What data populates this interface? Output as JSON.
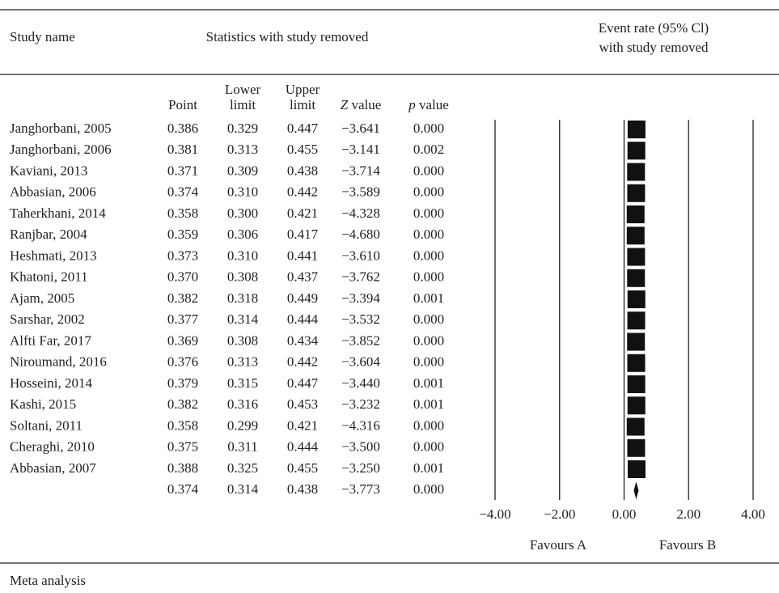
{
  "chart_data": {
    "type": "forest",
    "header_left": "Study name",
    "header_mid": "Statistics with study removed",
    "title_lines": [
      "Event rate (95% Cl)",
      "with study removed"
    ],
    "footer": "Meta analysis",
    "categories": [
      "Janghorbani, 2005",
      "Janghorbani, 2006",
      "Kaviani, 2013",
      "Abbasian, 2006",
      "Taherkhani, 2014",
      "Ranjbar, 2004",
      "Heshmati, 2013",
      "Khatoni, 2011",
      "Ajam, 2005",
      "Sarshar, 2002",
      "Alfti Far, 2017",
      "Niroumand, 2016",
      "Hosseini, 2014",
      "Kashi, 2015",
      "Soltani, 2011",
      "Cheraghi, 2010",
      "Abbasian, 2007",
      null
    ],
    "columns": [
      {
        "header": [
          "Point"
        ],
        "values": [
          0.386,
          0.381,
          0.371,
          0.374,
          0.358,
          0.359,
          0.373,
          0.37,
          0.382,
          0.377,
          0.369,
          0.376,
          0.379,
          0.382,
          0.358,
          0.375,
          0.388,
          0.374
        ],
        "value_labels": [
          "0.386",
          "0.381",
          "0.371",
          "0.374",
          "0.358",
          "0.359",
          "0.373",
          "0.370",
          "0.382",
          "0.377",
          "0.369",
          "0.376",
          "0.379",
          "0.382",
          "0.358",
          "0.375",
          "0.388",
          "0.374"
        ]
      },
      {
        "header": [
          "Lower",
          "limit"
        ],
        "values": [
          0.329,
          0.313,
          0.309,
          0.31,
          0.3,
          0.306,
          0.31,
          0.308,
          0.318,
          0.314,
          0.308,
          0.313,
          0.315,
          0.316,
          0.299,
          0.311,
          0.325,
          0.314
        ],
        "value_labels": [
          "0.329",
          "0.313",
          "0.309",
          "0.310",
          "0.300",
          "0.306",
          "0.310",
          "0.308",
          "0.318",
          "0.314",
          "0.308",
          "0.313",
          "0.315",
          "0.316",
          "0.299",
          "0.311",
          "0.325",
          "0.314"
        ]
      },
      {
        "header": [
          "Upper",
          "limit"
        ],
        "values": [
          0.447,
          0.455,
          0.438,
          0.442,
          0.421,
          0.417,
          0.441,
          0.437,
          0.449,
          0.444,
          0.434,
          0.442,
          0.447,
          0.453,
          0.421,
          0.444,
          0.455,
          0.438
        ],
        "value_labels": [
          "0.447",
          "0.455",
          "0.438",
          "0.442",
          "0.421",
          "0.417",
          "0.441",
          "0.437",
          "0.449",
          "0.444",
          "0.434",
          "0.442",
          "0.447",
          "0.453",
          "0.421",
          "0.444",
          "0.455",
          "0.438"
        ]
      },
      {
        "header": [
          "Z value"
        ],
        "italic_first": true,
        "values": [
          -3.641,
          -3.141,
          -3.714,
          -3.589,
          -4.328,
          -4.68,
          -3.61,
          -3.762,
          -3.394,
          -3.532,
          -3.852,
          -3.604,
          -3.44,
          -3.232,
          -4.316,
          -3.5,
          -3.25,
          -3.773
        ],
        "value_labels": [
          "−3.641",
          "−3.141",
          "−3.714",
          "−3.589",
          "−4.328",
          "−4.680",
          "−3.610",
          "−3.762",
          "−3.394",
          "−3.532",
          "−3.852",
          "−3.604",
          "−3.440",
          "−3.232",
          "−4.316",
          "−3.500",
          "−3.250",
          "−3.773"
        ]
      },
      {
        "header": [
          "p value"
        ],
        "italic_first": true,
        "values": [
          0,
          0.002,
          0,
          0,
          0,
          0,
          0,
          0,
          0.001,
          0,
          0,
          0,
          0.001,
          0.001,
          0,
          0,
          0.001,
          0
        ],
        "value_labels": [
          "0.000",
          "0.002",
          "0.000",
          "0.000",
          "0.000",
          "0.000",
          "0.000",
          "0.000",
          "0.001",
          "0.000",
          "0.000",
          "0.000",
          "0.001",
          "0.001",
          "0.000",
          "0.000",
          "0.001",
          "0.000"
        ]
      }
    ],
    "xlim": [
      -4,
      4
    ],
    "xticks": [
      {
        "value": -4,
        "label": "−4.00"
      },
      {
        "value": -2,
        "label": "−2.00"
      },
      {
        "value": 0,
        "label": "0.00"
      },
      {
        "value": 2,
        "label": "2.00"
      },
      {
        "value": 4,
        "label": "4.00"
      }
    ],
    "favours": [
      "Favours A",
      "Favours B"
    ],
    "color": "#111111",
    "grid": true
  }
}
